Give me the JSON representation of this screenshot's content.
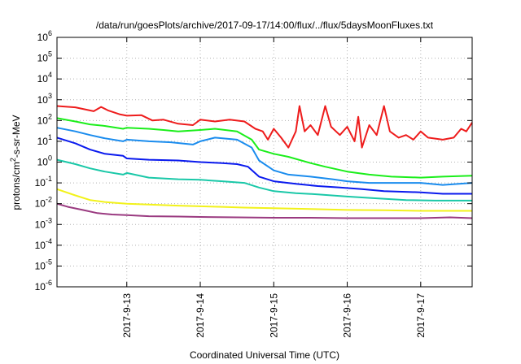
{
  "chart_data": {
    "type": "line",
    "title": "/data/run/goesPlots/archive/2017-09-17/14:00/flux/../flux/5daysMoonFluxes.txt",
    "xlabel": "Coordinated Universal Time (UTC)",
    "ylabel": "protons/cm²-s-sr-MeV",
    "ylabel_parts": {
      "base": "protons/cm",
      "sup": "2",
      "rest": "-s-sr-MeV"
    },
    "yscale": "log",
    "ylim": [
      1e-06,
      1000000.0
    ],
    "xlim": [
      -0.95,
      4.7
    ],
    "grid": true,
    "y_ticks": [
      {
        "base": "10",
        "exp": "-6",
        "value": -6
      },
      {
        "base": "10",
        "exp": "-5",
        "value": -5
      },
      {
        "base": "10",
        "exp": "-4",
        "value": -4
      },
      {
        "base": "10",
        "exp": "-3",
        "value": -3
      },
      {
        "base": "10",
        "exp": "-2",
        "value": -2
      },
      {
        "base": "10",
        "exp": "-1",
        "value": -1
      },
      {
        "base": "10",
        "exp": "0",
        "value": 0
      },
      {
        "base": "10",
        "exp": "1",
        "value": 1
      },
      {
        "base": "10",
        "exp": "2",
        "value": 2
      },
      {
        "base": "10",
        "exp": "3",
        "value": 3
      },
      {
        "base": "10",
        "exp": "4",
        "value": 4
      },
      {
        "base": "10",
        "exp": "5",
        "value": 5
      },
      {
        "base": "10",
        "exp": "6",
        "value": 6
      }
    ],
    "x_ticks": [
      {
        "label": "2017-9-13",
        "value": 0
      },
      {
        "label": "2017-9-14",
        "value": 1
      },
      {
        "label": "2017-9-15",
        "value": 2
      },
      {
        "label": "2017-9-16",
        "value": 3
      },
      {
        "label": "2017-9-17",
        "value": 4
      }
    ],
    "series": [
      {
        "color": "#ee1c1c",
        "points": [
          [
            -0.95,
            500
          ],
          [
            -0.7,
            430
          ],
          [
            -0.45,
            280
          ],
          [
            -0.35,
            450
          ],
          [
            -0.25,
            300
          ],
          [
            -0.1,
            200
          ],
          [
            0,
            170
          ],
          [
            0.2,
            180
          ],
          [
            0.35,
            100
          ],
          [
            0.5,
            110
          ],
          [
            0.7,
            70
          ],
          [
            0.9,
            60
          ],
          [
            1.0,
            110
          ],
          [
            1.2,
            90
          ],
          [
            1.4,
            110
          ],
          [
            1.6,
            90
          ],
          [
            1.75,
            40
          ],
          [
            1.85,
            30
          ],
          [
            1.92,
            12
          ],
          [
            2.0,
            40
          ],
          [
            2.1,
            15
          ],
          [
            2.2,
            5
          ],
          [
            2.3,
            30
          ],
          [
            2.35,
            500
          ],
          [
            2.42,
            30
          ],
          [
            2.5,
            60
          ],
          [
            2.6,
            20
          ],
          [
            2.7,
            500
          ],
          [
            2.78,
            50
          ],
          [
            2.9,
            20
          ],
          [
            3.0,
            50
          ],
          [
            3.1,
            10
          ],
          [
            3.15,
            150
          ],
          [
            3.2,
            5
          ],
          [
            3.3,
            60
          ],
          [
            3.4,
            20
          ],
          [
            3.5,
            500
          ],
          [
            3.58,
            30
          ],
          [
            3.7,
            15
          ],
          [
            3.8,
            20
          ],
          [
            3.9,
            12
          ],
          [
            4.0,
            30
          ],
          [
            4.1,
            15
          ],
          [
            4.3,
            12
          ],
          [
            4.45,
            15
          ],
          [
            4.55,
            40
          ],
          [
            4.62,
            30
          ],
          [
            4.7,
            80
          ]
        ]
      },
      {
        "color": "#1aee1a",
        "points": [
          [
            -0.95,
            130
          ],
          [
            -0.7,
            90
          ],
          [
            -0.5,
            65
          ],
          [
            -0.3,
            55
          ],
          [
            -0.05,
            40
          ],
          [
            0,
            45
          ],
          [
            0.3,
            40
          ],
          [
            0.5,
            35
          ],
          [
            0.7,
            30
          ],
          [
            1.0,
            35
          ],
          [
            1.2,
            40
          ],
          [
            1.5,
            30
          ],
          [
            1.7,
            12
          ],
          [
            1.8,
            4
          ],
          [
            2.0,
            2.5
          ],
          [
            2.2,
            1.8
          ],
          [
            2.5,
            0.9
          ],
          [
            2.7,
            0.6
          ],
          [
            3.0,
            0.35
          ],
          [
            3.3,
            0.25
          ],
          [
            3.6,
            0.2
          ],
          [
            4.0,
            0.18
          ],
          [
            4.3,
            0.2
          ],
          [
            4.7,
            0.22
          ]
        ]
      },
      {
        "color": "#1a8cee",
        "points": [
          [
            -0.95,
            45
          ],
          [
            -0.7,
            30
          ],
          [
            -0.5,
            20
          ],
          [
            -0.3,
            14
          ],
          [
            -0.05,
            10
          ],
          [
            0,
            12
          ],
          [
            0.3,
            10
          ],
          [
            0.6,
            9
          ],
          [
            0.9,
            7
          ],
          [
            1.0,
            10
          ],
          [
            1.2,
            15
          ],
          [
            1.5,
            12
          ],
          [
            1.7,
            5
          ],
          [
            1.8,
            1.2
          ],
          [
            2.0,
            0.4
          ],
          [
            2.2,
            0.25
          ],
          [
            2.5,
            0.2
          ],
          [
            2.8,
            0.15
          ],
          [
            3.0,
            0.12
          ],
          [
            3.3,
            0.1
          ],
          [
            3.6,
            0.1
          ],
          [
            4.0,
            0.1
          ],
          [
            4.3,
            0.08
          ],
          [
            4.7,
            0.1
          ]
        ]
      },
      {
        "color": "#0a1aee",
        "points": [
          [
            -0.95,
            15
          ],
          [
            -0.7,
            8
          ],
          [
            -0.5,
            4
          ],
          [
            -0.3,
            2.5
          ],
          [
            -0.05,
            2
          ],
          [
            0,
            1.5
          ],
          [
            0.3,
            1.3
          ],
          [
            0.7,
            1.2
          ],
          [
            1.0,
            1.0
          ],
          [
            1.3,
            0.9
          ],
          [
            1.5,
            0.8
          ],
          [
            1.65,
            0.6
          ],
          [
            1.8,
            0.2
          ],
          [
            2.0,
            0.12
          ],
          [
            2.3,
            0.09
          ],
          [
            2.6,
            0.07
          ],
          [
            2.9,
            0.06
          ],
          [
            3.2,
            0.05
          ],
          [
            3.5,
            0.04
          ],
          [
            4.0,
            0.035
          ],
          [
            4.3,
            0.03
          ],
          [
            4.7,
            0.03
          ]
        ]
      },
      {
        "color": "#1ac8a8",
        "points": [
          [
            -0.95,
            1.3
          ],
          [
            -0.7,
            0.8
          ],
          [
            -0.5,
            0.5
          ],
          [
            -0.3,
            0.35
          ],
          [
            -0.05,
            0.25
          ],
          [
            0,
            0.3
          ],
          [
            0.3,
            0.18
          ],
          [
            0.7,
            0.15
          ],
          [
            1.0,
            0.14
          ],
          [
            1.3,
            0.12
          ],
          [
            1.6,
            0.1
          ],
          [
            1.8,
            0.06
          ],
          [
            2.0,
            0.04
          ],
          [
            2.3,
            0.032
          ],
          [
            2.6,
            0.028
          ],
          [
            3.0,
            0.022
          ],
          [
            3.4,
            0.018
          ],
          [
            3.8,
            0.015
          ],
          [
            4.2,
            0.014
          ],
          [
            4.7,
            0.014
          ]
        ]
      },
      {
        "color": "#f2f21a",
        "points": [
          [
            -0.95,
            0.05
          ],
          [
            -0.7,
            0.025
          ],
          [
            -0.5,
            0.015
          ],
          [
            -0.3,
            0.012
          ],
          [
            0,
            0.01
          ],
          [
            0.3,
            0.009
          ],
          [
            0.7,
            0.008
          ],
          [
            1.0,
            0.0075
          ],
          [
            1.3,
            0.007
          ],
          [
            1.6,
            0.0065
          ],
          [
            2.0,
            0.006
          ],
          [
            2.5,
            0.0055
          ],
          [
            3.0,
            0.005
          ],
          [
            3.5,
            0.0048
          ],
          [
            4.0,
            0.0045
          ],
          [
            4.7,
            0.0045
          ]
        ]
      },
      {
        "color": "#9a3a80",
        "points": [
          [
            -0.95,
            0.01
          ],
          [
            -0.8,
            0.007
          ],
          [
            -0.6,
            0.005
          ],
          [
            -0.4,
            0.0035
          ],
          [
            -0.2,
            0.003
          ],
          [
            0,
            0.0028
          ],
          [
            0.3,
            0.0025
          ],
          [
            0.7,
            0.0024
          ],
          [
            1.0,
            0.0023
          ],
          [
            1.5,
            0.0022
          ],
          [
            2.0,
            0.0021
          ],
          [
            2.5,
            0.0021
          ],
          [
            3.0,
            0.002
          ],
          [
            3.5,
            0.002
          ],
          [
            4.0,
            0.002
          ],
          [
            4.4,
            0.0022
          ],
          [
            4.7,
            0.002
          ]
        ]
      }
    ]
  }
}
